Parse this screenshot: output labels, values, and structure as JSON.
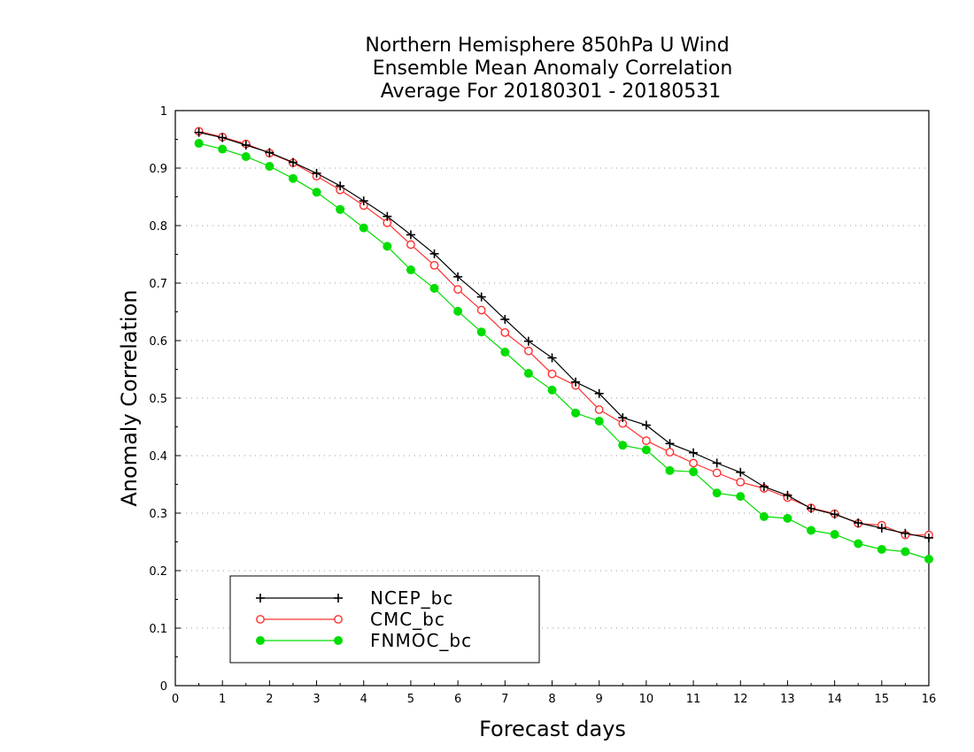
{
  "chart_data": {
    "type": "line",
    "title": [
      "Northern Hemisphere 850hPa U Wind",
      "Ensemble Mean Anomaly Correlation",
      "Average For 20180301 - 20180531"
    ],
    "xlabel": "Forecast days",
    "ylabel": "Anomaly Correlation",
    "xlim": [
      0,
      16
    ],
    "ylim": [
      0,
      1
    ],
    "xticks": [
      "0",
      "1",
      "2",
      "3",
      "4",
      "5",
      "6",
      "7",
      "8",
      "9",
      "10",
      "11",
      "12",
      "13",
      "14",
      "15",
      "16"
    ],
    "yticks": [
      "0",
      "0.1",
      "0.2",
      "0.3",
      "0.4",
      "0.5",
      "0.6",
      "0.7",
      "0.8",
      "0.9",
      "1"
    ],
    "grid": true,
    "legend_position": "bottom-left",
    "x": [
      0.5,
      1,
      1.5,
      2,
      2.5,
      3,
      3.5,
      4,
      4.5,
      5,
      5.5,
      6,
      6.5,
      7,
      7.5,
      8,
      8.5,
      9,
      9.5,
      10,
      10.5,
      11,
      11.5,
      12,
      12.5,
      13,
      13.5,
      14,
      14.5,
      15,
      15.5,
      16
    ],
    "series": [
      {
        "name": "NCEP_bc",
        "color": "#000000",
        "marker": "plus",
        "values": [
          0.962,
          0.953,
          0.94,
          0.927,
          0.91,
          0.891,
          0.869,
          0.843,
          0.816,
          0.784,
          0.751,
          0.711,
          0.676,
          0.637,
          0.599,
          0.57,
          0.528,
          0.508,
          0.466,
          0.453,
          0.421,
          0.405,
          0.387,
          0.371,
          0.346,
          0.331,
          0.308,
          0.298,
          0.283,
          0.274,
          0.265,
          0.257
        ]
      },
      {
        "name": "CMC_bc",
        "color": "#ff3030",
        "marker": "open-circle",
        "values": [
          0.964,
          0.954,
          0.942,
          0.926,
          0.909,
          0.886,
          0.862,
          0.835,
          0.805,
          0.767,
          0.731,
          0.689,
          0.653,
          0.614,
          0.582,
          0.542,
          0.522,
          0.48,
          0.456,
          0.426,
          0.406,
          0.387,
          0.37,
          0.354,
          0.343,
          0.327,
          0.309,
          0.299,
          0.282,
          0.279,
          0.262,
          0.262
        ]
      },
      {
        "name": "FNMOC_bc",
        "color": "#00dd00",
        "marker": "filled-circle",
        "values": [
          0.943,
          0.933,
          0.92,
          0.903,
          0.882,
          0.858,
          0.828,
          0.796,
          0.764,
          0.723,
          0.691,
          0.651,
          0.615,
          0.58,
          0.543,
          0.514,
          0.474,
          0.46,
          0.418,
          0.41,
          0.374,
          0.372,
          0.335,
          0.329,
          0.294,
          0.291,
          0.27,
          0.263,
          0.247,
          0.237,
          0.233,
          0.22
        ]
      }
    ]
  }
}
